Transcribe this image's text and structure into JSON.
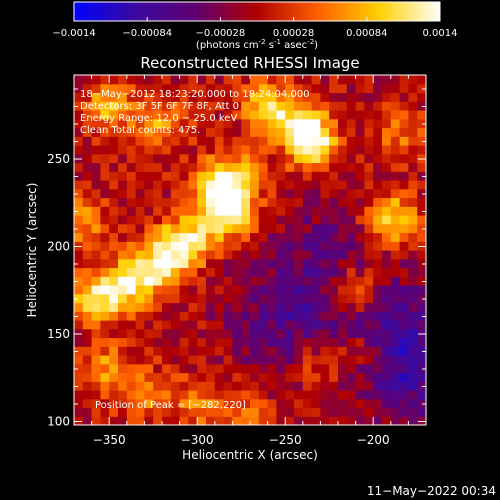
{
  "chart_data": {
    "type": "heatmap",
    "title": "Reconstructed RHESSI Image",
    "xlabel": "Heliocentric X (arcsec)",
    "ylabel": "Heliocentric Y (arcsec)",
    "colorbar": {
      "label_base": "(photons cm",
      "label_exp1": "-2",
      "label_mid": " s",
      "label_exp2": "-1",
      "label_mid2": " asec",
      "label_exp3": "-2",
      "label_end": ")",
      "ticks": [
        "-0.0014",
        "-0.00084",
        "-0.00028",
        "0.00028",
        "0.00084",
        "0.0014"
      ],
      "range": [
        -0.0014,
        0.0014
      ],
      "colors": [
        "#0000ff",
        "#3a0aa0",
        "#600070",
        "#b00000",
        "#ff6000",
        "#ffd000",
        "#ffffff"
      ]
    },
    "xlim": [
      -370,
      -170
    ],
    "ylim": [
      98,
      298
    ],
    "xticks": [
      -350,
      -300,
      -250,
      -200
    ],
    "yticks": [
      100,
      150,
      200,
      250
    ],
    "xtick_labels": [
      "−350",
      "−300",
      "−250",
      "−200"
    ],
    "ytick_labels": [
      "100",
      "150",
      "200",
      "250"
    ],
    "annotations": [
      "18−May−2012 18:23:20.000 to 18:24:04.000",
      "Detectors: 3F 5F 6F 7F 8F, Att 0",
      "Energy Range: 12.0 − 25.0 keV",
      "Clean    Total counts: 475."
    ],
    "peak_label": "Position of Peak = [−282,220]",
    "peak": [
      -282,
      220
    ],
    "grid": false,
    "blobs": [
      {
        "x": -282,
        "y": 220,
        "peak": 0.0014
      },
      {
        "x": -290,
        "y": 235,
        "peak": 0.0011
      },
      {
        "x": -305,
        "y": 205,
        "peak": 0.001
      },
      {
        "x": -315,
        "y": 195,
        "peak": 0.0009
      },
      {
        "x": -330,
        "y": 185,
        "peak": 0.001
      },
      {
        "x": -345,
        "y": 175,
        "peak": 0.0009
      },
      {
        "x": -360,
        "y": 170,
        "peak": 0.0008
      },
      {
        "x": -235,
        "y": 258,
        "peak": 0.0012
      },
      {
        "x": -240,
        "y": 270,
        "peak": 0.001
      },
      {
        "x": -260,
        "y": 280,
        "peak": 0.001
      },
      {
        "x": -275,
        "y": 240,
        "peak": 0.0007
      },
      {
        "x": -190,
        "y": 215,
        "peak": 0.0012
      },
      {
        "x": -210,
        "y": 175,
        "peak": 0.0008
      },
      {
        "x": -205,
        "y": 140,
        "peak": 0.0006
      },
      {
        "x": -230,
        "y": 135,
        "peak": 0.0005
      },
      {
        "x": -350,
        "y": 280,
        "peak": 0.0008
      },
      {
        "x": -320,
        "y": 270,
        "peak": 0.0007
      },
      {
        "x": -350,
        "y": 130,
        "peak": 0.0007
      },
      {
        "x": -330,
        "y": 115,
        "peak": 0.0006
      },
      {
        "x": -300,
        "y": 110,
        "peak": 0.0006
      },
      {
        "x": -365,
        "y": 215,
        "peak": 0.0007
      },
      {
        "x": -275,
        "y": 105,
        "peak": 0.0005
      },
      {
        "x": -185,
        "y": 265,
        "peak": 0.0005
      }
    ],
    "negative_regions": [
      {
        "x": -250,
        "y": 160,
        "peak": -0.0006
      },
      {
        "x": -190,
        "y": 150,
        "peak": -0.0007
      },
      {
        "x": -175,
        "y": 125,
        "peak": -0.0005
      },
      {
        "x": -225,
        "y": 200,
        "peak": -0.0004
      }
    ]
  },
  "footer": {
    "timestamp": "11−May−2022 00:34"
  }
}
